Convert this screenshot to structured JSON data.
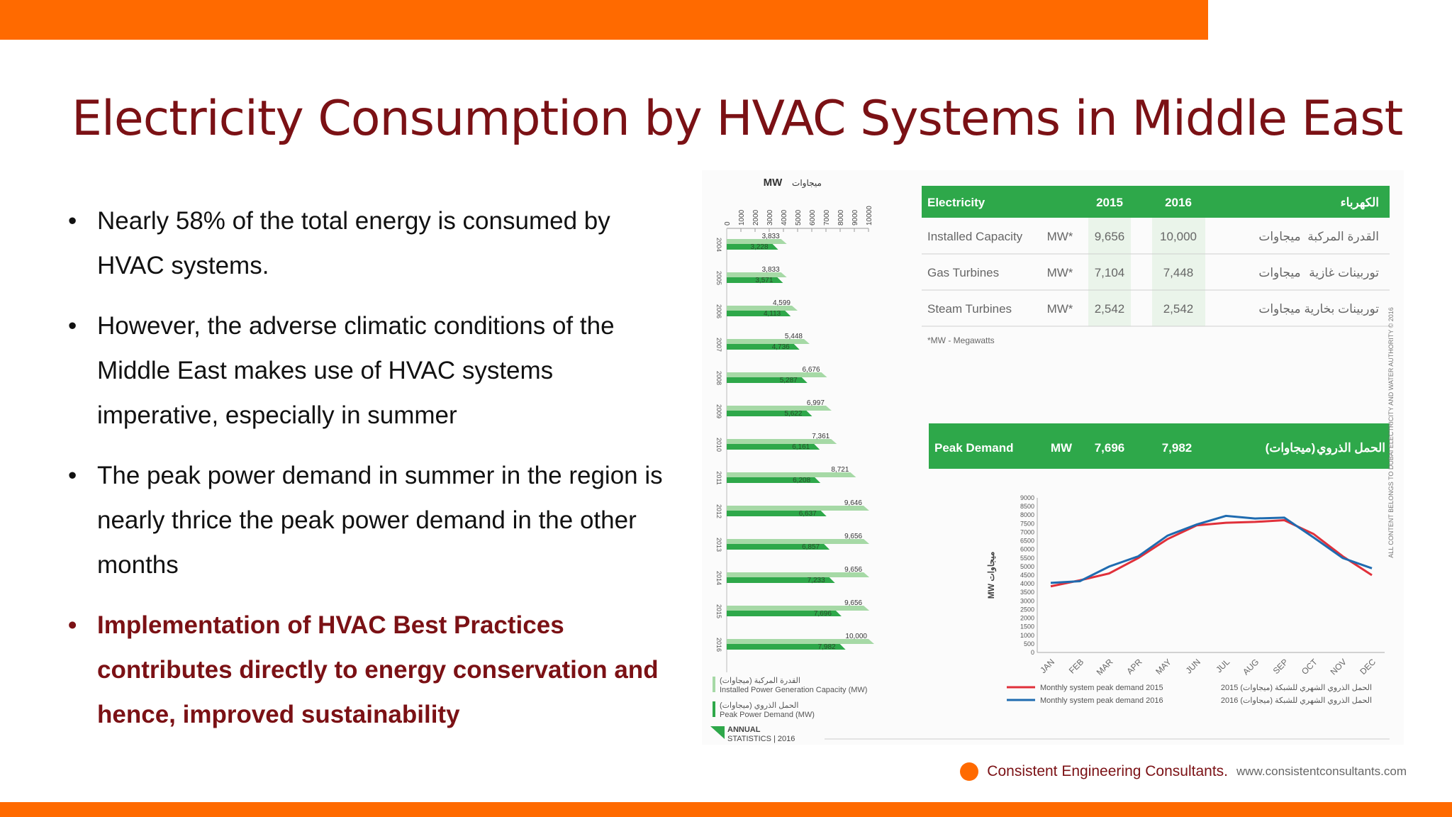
{
  "slide": {
    "title": "Electricity Consumption by HVAC Systems in Middle East",
    "bullets": [
      {
        "text": "Nearly 58% of the total energy is consumed by HVAC systems.",
        "highlight": false
      },
      {
        "text": "However, the adverse climatic conditions of the Middle East makes use of HVAC systems imperative, especially in summer",
        "highlight": false
      },
      {
        "text": "The peak power demand in summer in the region is nearly thrice the peak power demand in the other months",
        "highlight": false
      },
      {
        "text": "Implementation of HVAC Best Practices contributes directly to energy conservation and hence, improved sustainability",
        "highlight": true
      }
    ],
    "bullet_symbol": "•"
  },
  "footer": {
    "company": "Consistent Engineering Consultants.",
    "url": "www.consistentconsultants.com"
  },
  "colors": {
    "accent": "#ff6a00",
    "title": "#7b1115",
    "green": "#2ea84a",
    "light_green": "#a6d9a6",
    "red_line": "#e0303a",
    "blue_line": "#1f6bb0"
  },
  "figure": {
    "credit": "ALL CONTENT BELONGS TO DUBAI ELECTRICITY AND WATER AUTHORITY © 2016",
    "annual_statistics": [
      "ANNUAL",
      "STATISTICS | 2016"
    ]
  },
  "chart_data": [
    {
      "type": "bar",
      "unit_label": "MW",
      "unit_label_ar": "ميجاوات",
      "xlim": [
        0,
        10000
      ],
      "ticks": [
        "0",
        "1000",
        "2000",
        "3000",
        "4000",
        "5000",
        "6000",
        "7000",
        "8000",
        "9000",
        "10000"
      ],
      "categories": [
        "2004",
        "2005",
        "2006",
        "2007",
        "2008",
        "2009",
        "2010",
        "2011",
        "2012",
        "2013",
        "2014",
        "2015",
        "2016"
      ],
      "series": [
        {
          "name": "Installed Power Generation Capacity (MW)",
          "name_ar": "القدرة المركبة (ميجاوات)",
          "values": [
            3833,
            3833,
            4599,
            5448,
            6676,
            6997,
            7361,
            8721,
            9646,
            9656,
            9656,
            9656,
            10000
          ],
          "labels": [
            "3,833",
            "3,833",
            "4,599",
            "5,448",
            "6,676",
            "6,997",
            "7,361",
            "8,721",
            "9,646",
            "9,656",
            "9,656",
            "9,656",
            "10,000"
          ]
        },
        {
          "name": "Peak Power Demand (MW)",
          "name_ar": "الحمل الذروي (ميجاوات)",
          "values": [
            3228,
            3571,
            4113,
            4736,
            5287,
            5622,
            6161,
            6208,
            6637,
            6857,
            7233,
            7696,
            7982
          ],
          "labels": [
            "3,228",
            "3,571",
            "4,113",
            "4,736",
            "5,287",
            "5,622",
            "6,161",
            "6,208",
            "6,637",
            "6,857",
            "7,233",
            "7,696",
            "7,982"
          ]
        }
      ]
    },
    {
      "type": "table",
      "header": [
        "Electricity",
        "",
        "2015",
        "2016",
        "",
        "الكهرباء"
      ],
      "rows": [
        [
          "Installed Capacity",
          "MW*",
          "9,656",
          "10,000",
          "ميجاوات",
          "القدرة المركبة"
        ],
        [
          "Gas Turbines",
          "MW*",
          "7,104",
          "7,448",
          "ميجاوات",
          "توربينات غازية"
        ],
        [
          "Steam Turbines",
          "MW*",
          "2,542",
          "2,542",
          "ميجاوات",
          "توربينات بخارية"
        ]
      ],
      "footnote": "*MW - Megawatts",
      "peak_row": [
        "Peak Demand",
        "MW",
        "7,696",
        "7,982",
        "(ميجاوات)",
        "الحمل الذروي"
      ]
    },
    {
      "type": "line",
      "ylabel": "MW ميجاوات",
      "ylim": [
        0,
        9000
      ],
      "yticks": [
        "0",
        "500",
        "1000",
        "1500",
        "2000",
        "2500",
        "3000",
        "3500",
        "4000",
        "4500",
        "5000",
        "5500",
        "6000",
        "6500",
        "7000",
        "7500",
        "8000",
        "8500",
        "9000"
      ],
      "categories": [
        "JAN",
        "FEB",
        "MAR",
        "APR",
        "MAY",
        "JUN",
        "JUL",
        "AUG",
        "SEP",
        "OCT",
        "NOV",
        "DEC"
      ],
      "series": [
        {
          "name": "Monthly system peak demand 2015",
          "name_ar": "2015 الحمل الذروي الشهري للشبكة (ميجاوات)",
          "values": [
            3850,
            4200,
            4600,
            5500,
            6600,
            7400,
            7550,
            7600,
            7700,
            6900,
            5600,
            4500
          ]
        },
        {
          "name": "Monthly system peak demand 2016",
          "name_ar": "2016 الحمل الذروي الشهري للشبكة (ميجاوات)",
          "values": [
            4050,
            4150,
            5000,
            5600,
            6800,
            7450,
            7950,
            7800,
            7850,
            6700,
            5500,
            4900
          ]
        }
      ]
    }
  ]
}
